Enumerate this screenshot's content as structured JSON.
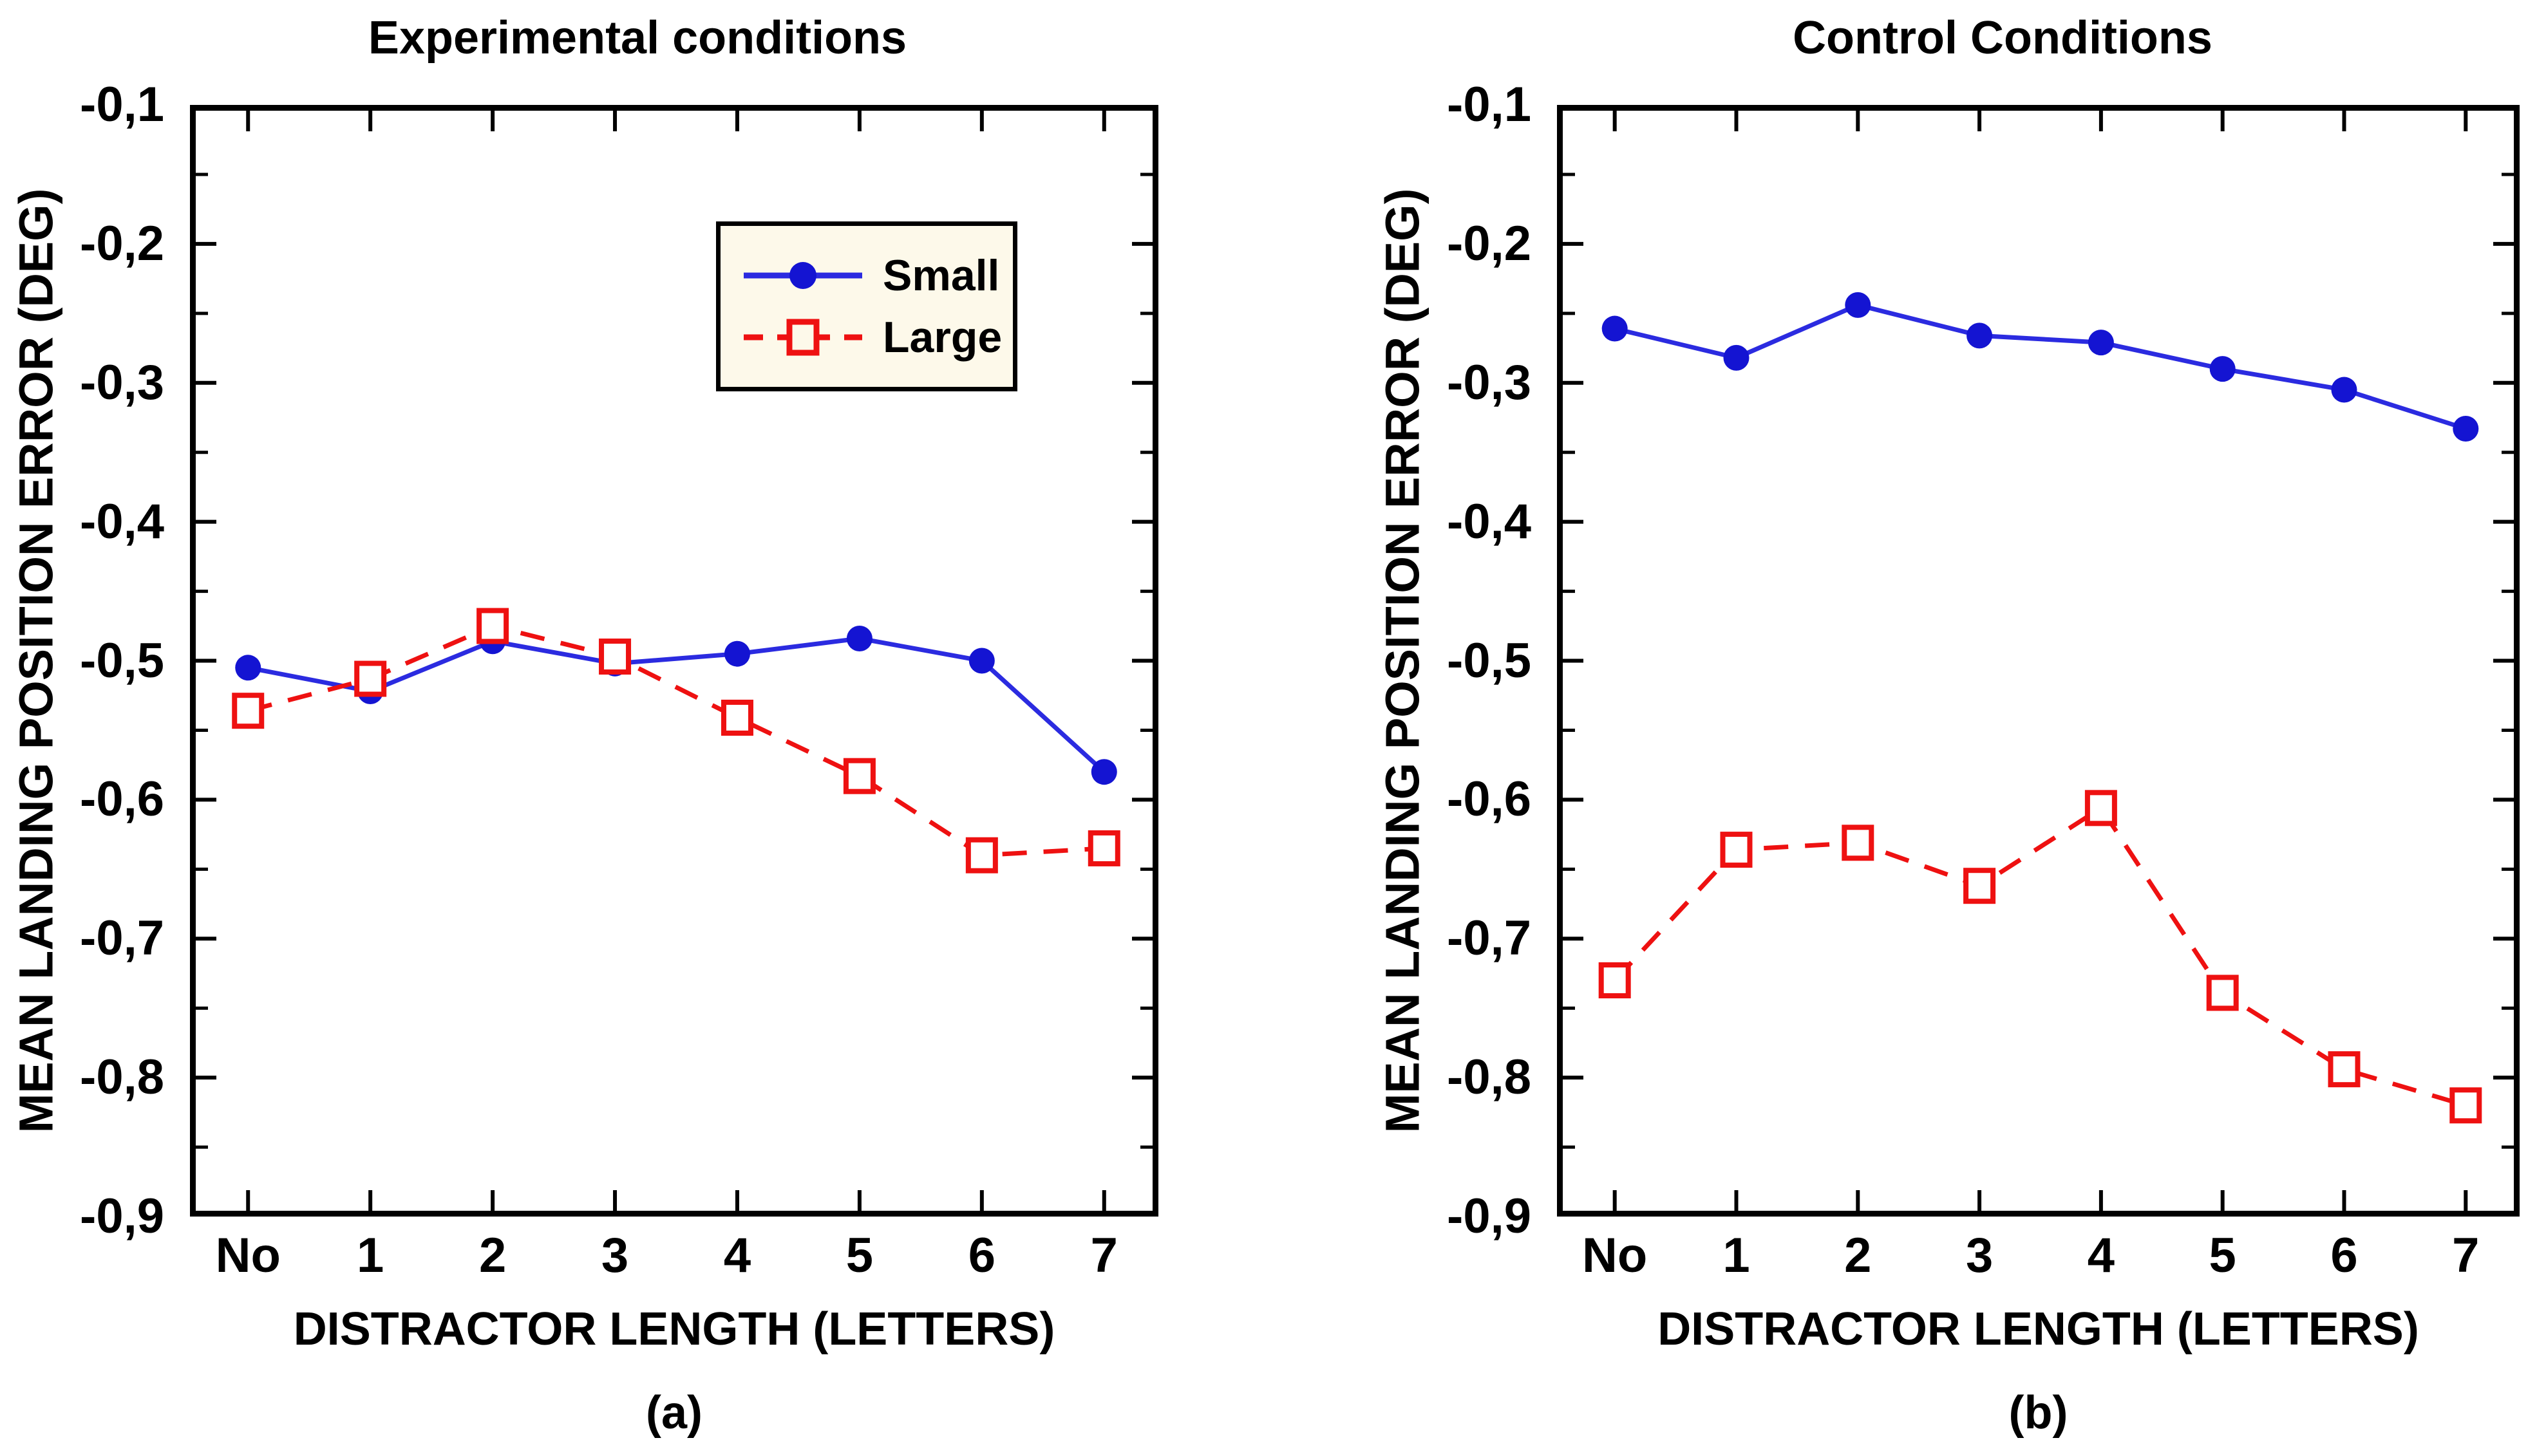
{
  "figure": {
    "background_color": "#ffffff",
    "text_color": "#000000"
  },
  "legend": {
    "background_color": "#fdf9ea",
    "border_color": "#000000",
    "entries": [
      {
        "label": "Small",
        "swatch": "blue-solid-line-filled-circle",
        "color": "#1414d2"
      },
      {
        "label": "Large",
        "swatch": "red-dashed-line-open-square",
        "color": "#ee1111"
      }
    ]
  },
  "chart_data": [
    {
      "type": "line",
      "panel_label": "(a)",
      "title": "Experimental conditions",
      "xlabel": "DISTRACTOR LENGTH (LETTERS)",
      "ylabel": "MEAN LANDING POSITION ERROR (DEG)",
      "categories": [
        "No",
        "1",
        "2",
        "3",
        "4",
        "5",
        "6",
        "7"
      ],
      "y_tick_labels": [
        "-0,1",
        "-0,2",
        "-0,3",
        "-0,4",
        "-0,5",
        "-0,6",
        "-0,7",
        "-0,8",
        "-0,9"
      ],
      "ylim": [
        -0.9,
        -0.1
      ],
      "grid": false,
      "legend_position": "upper-center-right-inside",
      "series": [
        {
          "name": "Small",
          "line_style": "solid",
          "line_color": "#2b2be0",
          "marker": "filled-circle",
          "marker_color": "#1414d2",
          "values": [
            -0.505,
            -0.522,
            -0.486,
            -0.502,
            -0.495,
            -0.484,
            -0.5,
            -0.58
          ]
        },
        {
          "name": "Large",
          "line_style": "dashed",
          "line_color": "#ee1111",
          "marker": "open-square",
          "marker_color": "#ee1111",
          "values": [
            -0.536,
            -0.513,
            -0.475,
            -0.497,
            -0.541,
            -0.583,
            -0.64,
            -0.635
          ]
        }
      ]
    },
    {
      "type": "line",
      "panel_label": "(b)",
      "title": "Control Conditions",
      "xlabel": "DISTRACTOR LENGTH (LETTERS)",
      "ylabel": "MEAN LANDING POSITION ERROR (DEG)",
      "categories": [
        "No",
        "1",
        "2",
        "3",
        "4",
        "5",
        "6",
        "7"
      ],
      "y_tick_labels": [
        "-0,1",
        "-0,2",
        "-0,3",
        "-0,4",
        "-0,5",
        "-0,6",
        "-0,7",
        "-0,8",
        "-0,9"
      ],
      "ylim": [
        -0.9,
        -0.1
      ],
      "grid": false,
      "legend_position": "none",
      "series": [
        {
          "name": "Small",
          "line_style": "solid",
          "line_color": "#2b2be0",
          "marker": "filled-circle",
          "marker_color": "#1414d2",
          "values": [
            -0.261,
            -0.282,
            -0.244,
            -0.266,
            -0.271,
            -0.29,
            -0.305,
            -0.333
          ]
        },
        {
          "name": "Large",
          "line_style": "dashed",
          "line_color": "#ee1111",
          "marker": "open-square",
          "marker_color": "#ee1111",
          "values": [
            -0.73,
            -0.636,
            -0.631,
            -0.662,
            -0.606,
            -0.739,
            -0.794,
            -0.82
          ]
        }
      ]
    }
  ]
}
